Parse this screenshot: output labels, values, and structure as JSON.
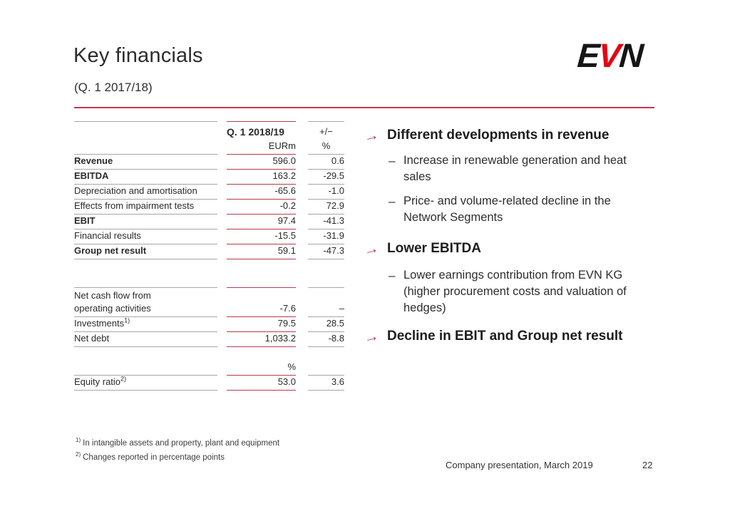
{
  "slide": {
    "title": "Key financials",
    "subtitle": "(Q. 1 2017/18)",
    "logo_e": "E",
    "logo_v": "V",
    "logo_n": "N"
  },
  "icons": {
    "arrow": "→",
    "dash": "–"
  },
  "table": {
    "header": {
      "period": "Q. 1 2018/19",
      "change": "+/−",
      "unit_value": "EURm",
      "unit_change": "%"
    },
    "rows": [
      {
        "label": "Revenue",
        "value": "596.0",
        "change": "0.6"
      },
      {
        "label": "EBITDA",
        "value": "163.2",
        "change": "-29.5"
      },
      {
        "label": "Depreciation and amortisation",
        "value": "-65.6",
        "change": "-1.0"
      },
      {
        "label": "Effects from impairment tests",
        "value": "-0.2",
        "change": "72.9"
      },
      {
        "label": "EBIT",
        "value": "97.4",
        "change": "-41.3"
      },
      {
        "label": "Financial results",
        "value": "-15.5",
        "change": "-31.9"
      },
      {
        "label": "Group net result",
        "value": "59.1",
        "change": "-47.3"
      },
      {
        "label_line1": "Net cash flow from",
        "label_line2": "operating activities",
        "value": "-7.6",
        "change": "–"
      },
      {
        "label": "Investments",
        "label_sup": "1)",
        "value": "79.5",
        "change": "28.5"
      },
      {
        "label": "Net debt",
        "value": "1,033.2",
        "change": "-8.8"
      },
      {
        "label": "Equity ratio",
        "label_sup": "2)",
        "value": "53.0",
        "change": "3.6"
      }
    ],
    "equity_unit": "%"
  },
  "bullets": [
    {
      "heading": "Different developments in revenue",
      "subs": [
        "Increase in renewable generation and heat sales",
        "Price- and volume-related decline in the Network Segments"
      ]
    },
    {
      "heading": "Lower EBITDA",
      "subs": [
        "Lower earnings contribution from EVN KG (higher procurement costs and valuation of hedges)"
      ]
    },
    {
      "heading": "Decline in EBIT and Group net result",
      "subs": []
    }
  ],
  "footnotes": [
    {
      "sup": "1)",
      "text": "In intangible assets and property, plant and equipment"
    },
    {
      "sup": "2)",
      "text": "Changes reported in percentage points"
    }
  ],
  "footer": {
    "caption": "Company presentation, March 2019",
    "page": "22"
  }
}
